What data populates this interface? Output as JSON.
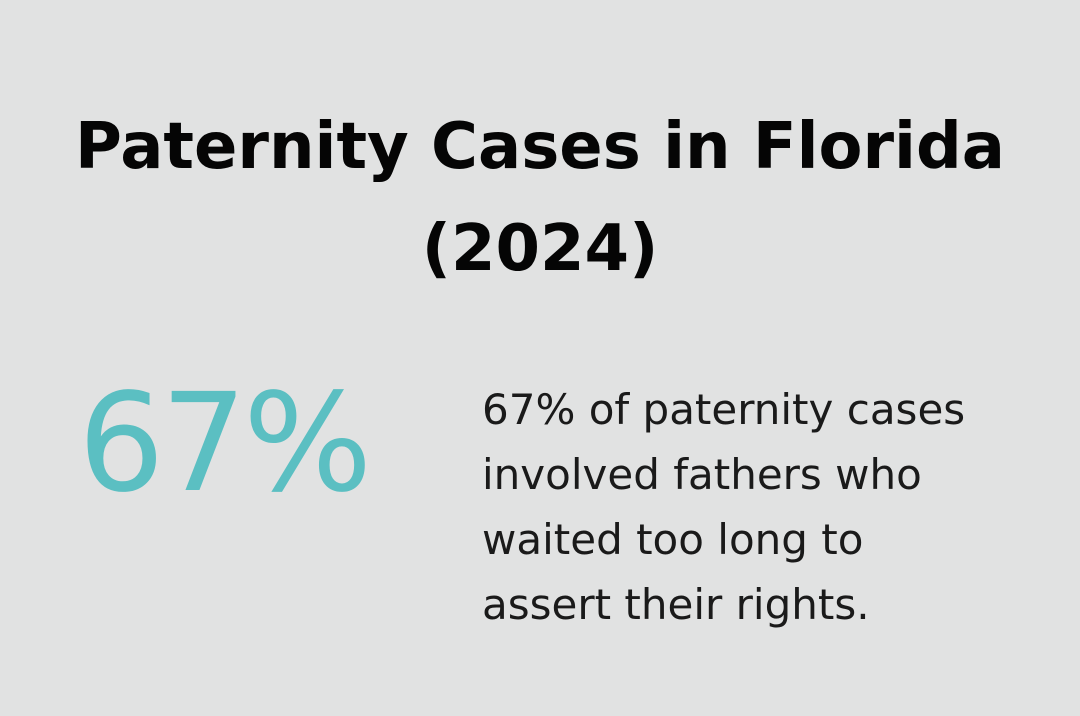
{
  "title": {
    "line1": "Paternity Cases in Florida",
    "line2": "(2024)"
  },
  "stat": {
    "value": "67%"
  },
  "description": {
    "lines": [
      "67% of paternity cases",
      "involved fathers who",
      "waited too long to",
      "assert their rights."
    ]
  },
  "colors": {
    "background": "#e1e2e2",
    "accent": "#5bbfc2",
    "title": "#050505",
    "text": "#1a1a1a"
  }
}
